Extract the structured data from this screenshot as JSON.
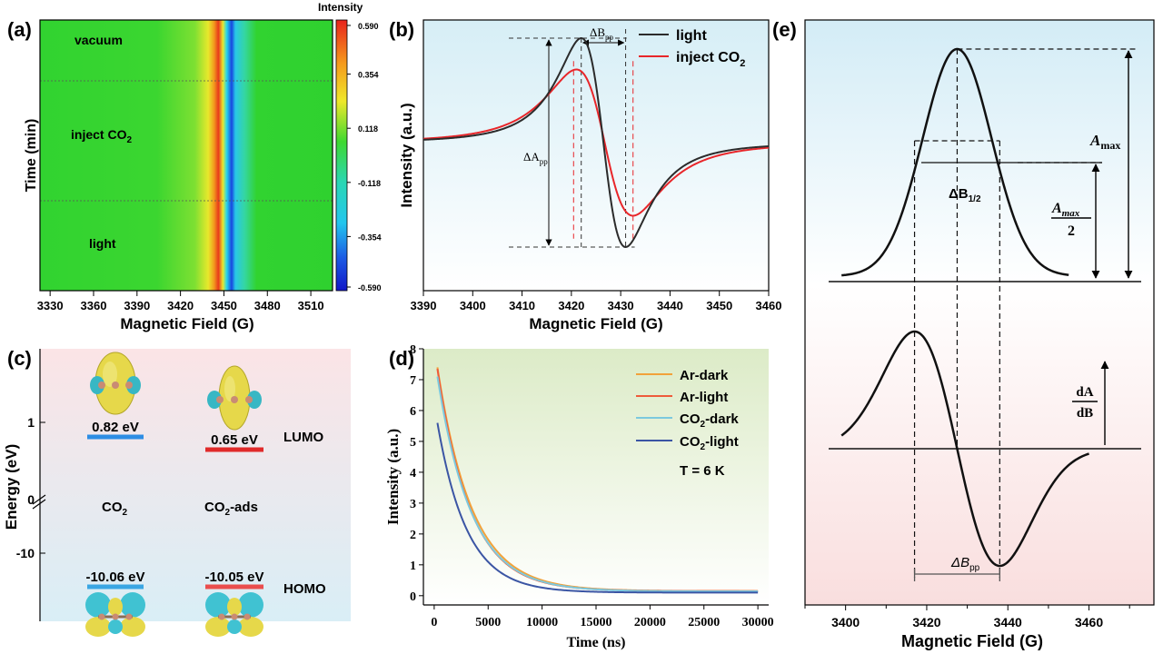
{
  "colors": {
    "green_bg": "#2fd72f",
    "light_black": "#2b2b2b",
    "co2_red": "#e8262a",
    "ar_dark": "#f2a23a",
    "ar_light": "#ee5b3a",
    "co2_dark": "#7cc9de",
    "co2_light": "#3b55a4",
    "lumo_blue": "#2d8de4",
    "lumo_red": "#e02a2a",
    "homo_blue": "#3aa6e3",
    "homo_red": "#ea4d4d"
  },
  "panel_a": {
    "label": "(a)",
    "ylabel": "Time (min)",
    "xlabel": "Magnetic Field (G)",
    "xticks": [
      "3330",
      "3360",
      "3390",
      "3420",
      "3450",
      "3480",
      "3510"
    ],
    "region_labels": [
      "vacuum",
      "inject CO",
      "light"
    ],
    "region_label_sub": "2",
    "colorbar_title": "Intensity",
    "colorbar_ticks": [
      "0.590",
      "0.354",
      "0.118",
      "-0.118",
      "-0.354",
      "-0.590"
    ]
  },
  "panel_b": {
    "label": "(b)",
    "ylabel": "Intensity (a.u.)",
    "xlabel": "Magnetic Field (G)",
    "xticks": [
      "3390",
      "3400",
      "3410",
      "3420",
      "3430",
      "3440",
      "3450",
      "3460"
    ],
    "delta_b_label": "ΔB",
    "delta_b_sub": "pp",
    "delta_a_label": "ΔA",
    "delta_a_sub": "pp",
    "legend": [
      "light",
      "inject CO"
    ],
    "legend_sub": "2"
  },
  "panel_c": {
    "label": "(c)",
    "ylabel": "Energy (eV)",
    "yticks": [
      "1",
      "0",
      "-10"
    ],
    "col_labels": [
      "CO",
      "CO"
    ],
    "col_sub": "2",
    "col2_suffix": "-ads",
    "lumo_values": [
      "0.82 eV",
      "0.65 eV"
    ],
    "homo_values": [
      "-10.06 eV",
      "-10.05 eV"
    ],
    "lumo": "LUMO",
    "homo": "HOMO"
  },
  "panel_d": {
    "label": "(d)",
    "ylabel": "Intensity (a.u.)",
    "xlabel": "Time (ns)",
    "xticks": [
      "0",
      "5000",
      "10000",
      "15000",
      "20000",
      "25000",
      "30000"
    ],
    "yticks": [
      "0",
      "1",
      "2",
      "3",
      "4",
      "5",
      "6",
      "7",
      "8"
    ],
    "legend": [
      "Ar-dark",
      "Ar-light",
      "CO",
      "CO"
    ],
    "legend_suffix": [
      "",
      "",
      "-dark",
      "-light"
    ],
    "legend_sub": "2",
    "temp_label": "T = 6 K"
  },
  "panel_e": {
    "label": "(e)",
    "xlabel": "Magnetic Field (G)",
    "xticks": [
      "3400",
      "3420",
      "3440",
      "3460"
    ],
    "amax_label": "A",
    "amax_sub": "max",
    "half_num": "A",
    "half_num_sub": "max",
    "half_den": "2",
    "db_half": "ΔB",
    "db_half_sub": "1/2",
    "dadb_num": "dA",
    "dadb_den": "dB",
    "dbpp": "ΔB",
    "dbpp_sub": "pp"
  },
  "chart_data": [
    {
      "panel": "a",
      "type": "heatmap",
      "xlabel": "Magnetic Field (G)",
      "ylabel": "Time (min)",
      "xlim": [
        3323,
        3525
      ],
      "regions": [
        "vacuum",
        "inject CO2",
        "light"
      ],
      "colorbar": {
        "label": "Intensity",
        "range": [
          -0.59,
          0.59
        ],
        "ticks": [
          0.59,
          0.354,
          0.118,
          -0.118,
          -0.354,
          -0.59
        ]
      },
      "signal": {
        "positive_peak_field": 3422,
        "negative_peak_field": 3432
      }
    },
    {
      "panel": "b",
      "type": "line",
      "xlabel": "Magnetic Field (G)",
      "ylabel": "Intensity (a.u.)",
      "xlim": [
        3390,
        3460
      ],
      "series": [
        {
          "name": "light",
          "peak_max_field": 3422,
          "peak_min_field": 3431,
          "amplitude": 1.0
        },
        {
          "name": "inject CO2",
          "peak_max_field": 3421,
          "peak_min_field": 3432.5,
          "amplitude": 0.7
        }
      ]
    },
    {
      "panel": "c",
      "type": "table",
      "ylabel": "Energy (eV)",
      "rows": [
        {
          "species": "CO2",
          "LUMO_eV": 0.82,
          "HOMO_eV": -10.06
        },
        {
          "species": "CO2-ads",
          "LUMO_eV": 0.65,
          "HOMO_eV": -10.05
        }
      ]
    },
    {
      "panel": "d",
      "type": "line",
      "xlabel": "Time (ns)",
      "ylabel": "Intensity (a.u.)",
      "xlim": [
        -1000,
        31000
      ],
      "ylim": [
        -0.3,
        8
      ],
      "annotation": "T = 6 K",
      "series": [
        {
          "name": "Ar-dark",
          "A0": 7.4,
          "tau_ns": 3200,
          "baseline": 0.15
        },
        {
          "name": "Ar-light",
          "A0": 7.35,
          "tau_ns": 3050,
          "baseline": 0.15
        },
        {
          "name": "CO2-dark",
          "A0": 7.1,
          "tau_ns": 3150,
          "baseline": 0.14
        },
        {
          "name": "CO2-light",
          "A0": 5.6,
          "tau_ns": 2750,
          "baseline": 0.1
        }
      ]
    },
    {
      "panel": "e",
      "type": "line",
      "xlabel": "Magnetic Field (G)",
      "xlim": [
        3390,
        3476
      ],
      "series": [
        {
          "name": "absorption",
          "center": 3427.5,
          "fwhm": 20
        },
        {
          "name": "derivative",
          "peak_max_field": 3417,
          "peak_min_field": 3438
        }
      ]
    }
  ]
}
